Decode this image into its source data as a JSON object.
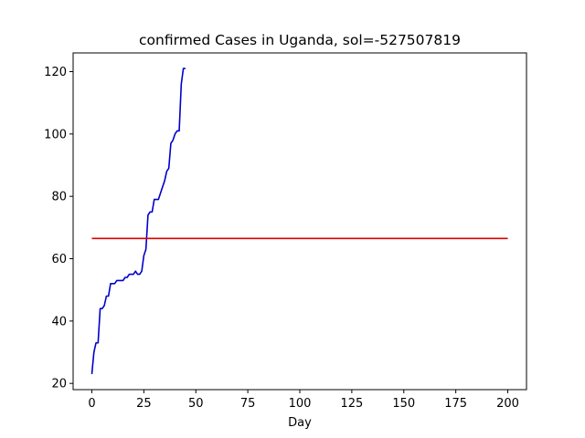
{
  "chart_data": {
    "type": "line",
    "title": "confirmed Cases in Uganda, sol=-527507819",
    "xlabel": "Day",
    "ylabel": "",
    "xlim": [
      -9,
      209
    ],
    "ylim": [
      18,
      126
    ],
    "xticks": [
      0,
      25,
      50,
      75,
      100,
      125,
      150,
      175,
      200
    ],
    "yticks": [
      20,
      40,
      60,
      80,
      100,
      120
    ],
    "grid": false,
    "series": [
      {
        "color": "#0000cc",
        "x": [
          0,
          1,
          2,
          3,
          4,
          5,
          6,
          7,
          8,
          9,
          10,
          11,
          12,
          13,
          14,
          15,
          16,
          17,
          18,
          19,
          20,
          21,
          22,
          23,
          24,
          25,
          26,
          27,
          28,
          29,
          30,
          31,
          32,
          33,
          34,
          35,
          36,
          37,
          38,
          39,
          40,
          41,
          42,
          43,
          44,
          45
        ],
        "y": [
          23,
          30,
          33,
          33,
          44,
          44,
          45,
          48,
          48,
          52,
          52,
          52,
          53,
          53,
          53,
          53,
          54,
          54,
          55,
          55,
          55,
          56,
          55,
          55,
          56,
          61,
          63,
          74,
          75,
          75,
          79,
          79,
          79,
          81,
          83,
          85,
          88,
          89,
          97,
          98,
          100,
          101,
          101,
          116,
          121,
          121
        ]
      },
      {
        "color": "#dd0000",
        "x": [
          0,
          200
        ],
        "y": [
          66.5,
          66.5
        ]
      }
    ]
  }
}
